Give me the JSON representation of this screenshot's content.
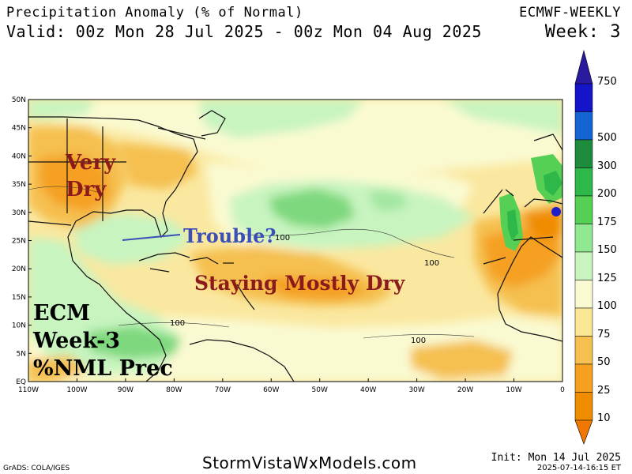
{
  "header": {
    "title": "Precipitation Anomaly (% of Normal)",
    "valid": "Valid: 00z Mon 28 Jul 2025 - 00z Mon 04 Aug 2025",
    "model": "ECMWF-WEEKLY",
    "week": "Week: 3"
  },
  "axes": {
    "lat_labels": [
      "50N",
      "45N",
      "40N",
      "35N",
      "30N",
      "25N",
      "20N",
      "15N",
      "10N",
      "5N",
      "EQ"
    ],
    "lon_labels": [
      "110W",
      "100W",
      "90W",
      "80W",
      "70W",
      "60W",
      "50W",
      "40W",
      "30W",
      "20W",
      "10W",
      "0"
    ]
  },
  "contour_labels": [
    "100",
    "100",
    "100",
    "100"
  ],
  "annotations": {
    "very_dry_1": "Very",
    "very_dry_2": "Dry",
    "trouble": "Trouble?",
    "mostly_dry": "Staying Mostly Dry",
    "ecm_1": "ECM",
    "ecm_2": "Week-3",
    "ecm_3": "%NML Prec"
  },
  "colorbar": {
    "levels": [
      "750",
      "500",
      "300",
      "200",
      "175",
      "150",
      "125",
      "100",
      "75",
      "50",
      "25",
      "10"
    ],
    "colors": [
      "#1414c8",
      "#1464d2",
      "#1e8c3c",
      "#2eb84a",
      "#55d055",
      "#90e890",
      "#c8f4c0",
      "#fafad2",
      "#fae896",
      "#f5c050",
      "#f5a020",
      "#f08c00"
    ],
    "top_color": "#2a1aa0",
    "bottom_color": "#f07800"
  },
  "footer": {
    "grads": "GrADS: COLA/IGES",
    "site": "StormVistaWxModels.com",
    "init": "Init: Mon 14 Jul 2025",
    "stamp": "2025-07-14-16:15 ET"
  }
}
